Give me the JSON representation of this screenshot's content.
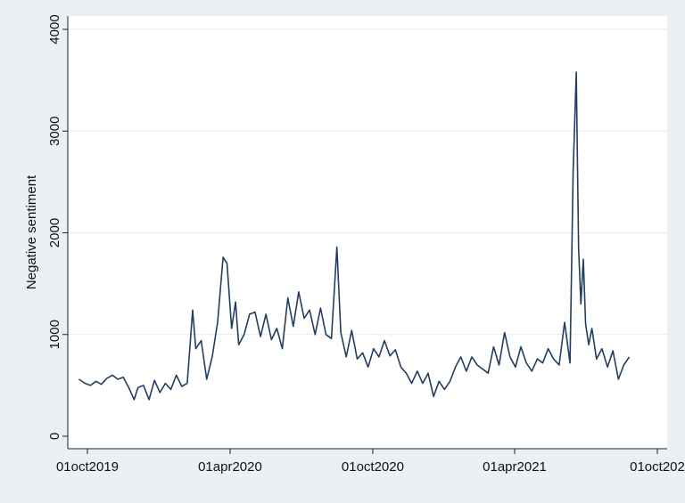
{
  "chart_data": {
    "type": "line",
    "title": "",
    "xlabel": "",
    "ylabel": "Negative sentiment",
    "ylim": [
      0,
      4000
    ],
    "xlim": [
      "2019-09-25",
      "2021-09-30"
    ],
    "yticks": [
      0,
      1000,
      2000,
      3000,
      4000
    ],
    "xticks": [
      {
        "date": "2019-10-01",
        "label": "01oct2019"
      },
      {
        "date": "2020-04-01",
        "label": "01apr2020"
      },
      {
        "date": "2020-10-01",
        "label": "01oct2020"
      },
      {
        "date": "2021-04-01",
        "label": "01apr2021"
      },
      {
        "date": "2021-10-01",
        "label": "01oct202"
      }
    ],
    "grid": true,
    "legend": "none",
    "colors": {
      "line": "#1f3f66",
      "plot_bg": "#ffffff",
      "page_bg": "#eaf0f4",
      "grid": "#e6ebef"
    },
    "series": [
      {
        "name": "",
        "points": [
          [
            "2019-09-20",
            560
          ],
          [
            "2019-09-28",
            520
          ],
          [
            "2019-10-05",
            500
          ],
          [
            "2019-10-12",
            540
          ],
          [
            "2019-10-19",
            510
          ],
          [
            "2019-10-26",
            570
          ],
          [
            "2019-11-02",
            600
          ],
          [
            "2019-11-09",
            560
          ],
          [
            "2019-11-16",
            580
          ],
          [
            "2019-11-23",
            480
          ],
          [
            "2019-11-30",
            360
          ],
          [
            "2019-12-05",
            480
          ],
          [
            "2019-12-12",
            500
          ],
          [
            "2019-12-19",
            360
          ],
          [
            "2019-12-26",
            550
          ],
          [
            "2020-01-02",
            430
          ],
          [
            "2020-01-09",
            520
          ],
          [
            "2020-01-16",
            460
          ],
          [
            "2020-01-23",
            600
          ],
          [
            "2020-01-30",
            490
          ],
          [
            "2020-02-06",
            520
          ],
          [
            "2020-02-13",
            1240
          ],
          [
            "2020-02-17",
            860
          ],
          [
            "2020-02-24",
            940
          ],
          [
            "2020-03-02",
            560
          ],
          [
            "2020-03-09",
            780
          ],
          [
            "2020-03-16",
            1120
          ],
          [
            "2020-03-23",
            1760
          ],
          [
            "2020-03-28",
            1700
          ],
          [
            "2020-04-03",
            1060
          ],
          [
            "2020-04-08",
            1320
          ],
          [
            "2020-04-12",
            900
          ],
          [
            "2020-04-19",
            1000
          ],
          [
            "2020-04-26",
            1200
          ],
          [
            "2020-05-03",
            1220
          ],
          [
            "2020-05-10",
            980
          ],
          [
            "2020-05-17",
            1200
          ],
          [
            "2020-05-24",
            950
          ],
          [
            "2020-05-31",
            1060
          ],
          [
            "2020-06-07",
            860
          ],
          [
            "2020-06-14",
            1360
          ],
          [
            "2020-06-21",
            1080
          ],
          [
            "2020-06-28",
            1420
          ],
          [
            "2020-07-05",
            1160
          ],
          [
            "2020-07-12",
            1240
          ],
          [
            "2020-07-19",
            1000
          ],
          [
            "2020-07-26",
            1260
          ],
          [
            "2020-08-02",
            1000
          ],
          [
            "2020-08-09",
            960
          ],
          [
            "2020-08-16",
            1860
          ],
          [
            "2020-08-21",
            1020
          ],
          [
            "2020-08-28",
            780
          ],
          [
            "2020-09-04",
            1040
          ],
          [
            "2020-09-11",
            760
          ],
          [
            "2020-09-18",
            820
          ],
          [
            "2020-09-25",
            680
          ],
          [
            "2020-10-02",
            860
          ],
          [
            "2020-10-09",
            780
          ],
          [
            "2020-10-16",
            940
          ],
          [
            "2020-10-23",
            790
          ],
          [
            "2020-10-30",
            850
          ],
          [
            "2020-11-06",
            680
          ],
          [
            "2020-11-13",
            620
          ],
          [
            "2020-11-20",
            520
          ],
          [
            "2020-11-27",
            640
          ],
          [
            "2020-12-04",
            520
          ],
          [
            "2020-12-11",
            620
          ],
          [
            "2020-12-18",
            390
          ],
          [
            "2020-12-25",
            540
          ],
          [
            "2021-01-01",
            460
          ],
          [
            "2021-01-08",
            540
          ],
          [
            "2021-01-15",
            680
          ],
          [
            "2021-01-22",
            780
          ],
          [
            "2021-01-29",
            640
          ],
          [
            "2021-02-05",
            780
          ],
          [
            "2021-02-12",
            700
          ],
          [
            "2021-02-19",
            660
          ],
          [
            "2021-02-26",
            620
          ],
          [
            "2021-03-05",
            880
          ],
          [
            "2021-03-12",
            700
          ],
          [
            "2021-03-19",
            1020
          ],
          [
            "2021-03-26",
            780
          ],
          [
            "2021-04-02",
            680
          ],
          [
            "2021-04-09",
            880
          ],
          [
            "2021-04-16",
            720
          ],
          [
            "2021-04-23",
            640
          ],
          [
            "2021-04-30",
            760
          ],
          [
            "2021-05-07",
            720
          ],
          [
            "2021-05-14",
            860
          ],
          [
            "2021-05-21",
            760
          ],
          [
            "2021-05-28",
            700
          ],
          [
            "2021-06-04",
            1120
          ],
          [
            "2021-06-11",
            720
          ],
          [
            "2021-06-15",
            2600
          ],
          [
            "2021-06-19",
            3580
          ],
          [
            "2021-06-22",
            1850
          ],
          [
            "2021-06-25",
            1300
          ],
          [
            "2021-06-28",
            1740
          ],
          [
            "2021-07-01",
            1100
          ],
          [
            "2021-07-05",
            900
          ],
          [
            "2021-07-09",
            1060
          ],
          [
            "2021-07-15",
            760
          ],
          [
            "2021-07-22",
            860
          ],
          [
            "2021-07-29",
            680
          ],
          [
            "2021-08-05",
            840
          ],
          [
            "2021-08-12",
            560
          ],
          [
            "2021-08-19",
            700
          ],
          [
            "2021-08-26",
            780
          ]
        ]
      }
    ]
  }
}
